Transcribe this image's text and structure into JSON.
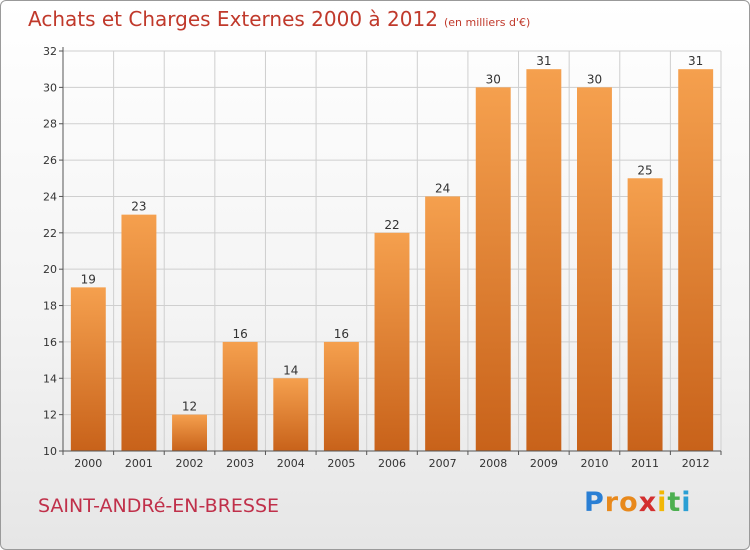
{
  "title": "Achats et Charges Externes 2000 à 2012",
  "title_unit": "(en milliers d'€)",
  "city": "SAINT-ANDRé-EN-BRESSE",
  "logo": {
    "letters": [
      "P",
      "r",
      "o",
      "x",
      "i",
      "t",
      "i"
    ],
    "colors": [
      "#2a7fd4",
      "#e8891c",
      "#e8891c",
      "#d32f2f",
      "#f2b705",
      "#4caf50",
      "#2a9fd4"
    ]
  },
  "colors": {
    "bar_top": "#f5a04e",
    "bar_bottom": "#c8621a",
    "grid": "#cfcfcf",
    "axis": "#555555",
    "text": "#333333"
  },
  "chart_data": {
    "type": "bar",
    "categories": [
      "2000",
      "2001",
      "2002",
      "2003",
      "2004",
      "2005",
      "2006",
      "2007",
      "2008",
      "2009",
      "2010",
      "2011",
      "2012"
    ],
    "values": [
      19,
      23,
      12,
      16,
      14,
      16,
      22,
      24,
      30,
      31,
      30,
      25,
      31
    ],
    "yticks": [
      10,
      12,
      14,
      16,
      18,
      20,
      22,
      24,
      26,
      28,
      30,
      32
    ],
    "ylim": [
      10,
      32
    ],
    "grid": true
  }
}
